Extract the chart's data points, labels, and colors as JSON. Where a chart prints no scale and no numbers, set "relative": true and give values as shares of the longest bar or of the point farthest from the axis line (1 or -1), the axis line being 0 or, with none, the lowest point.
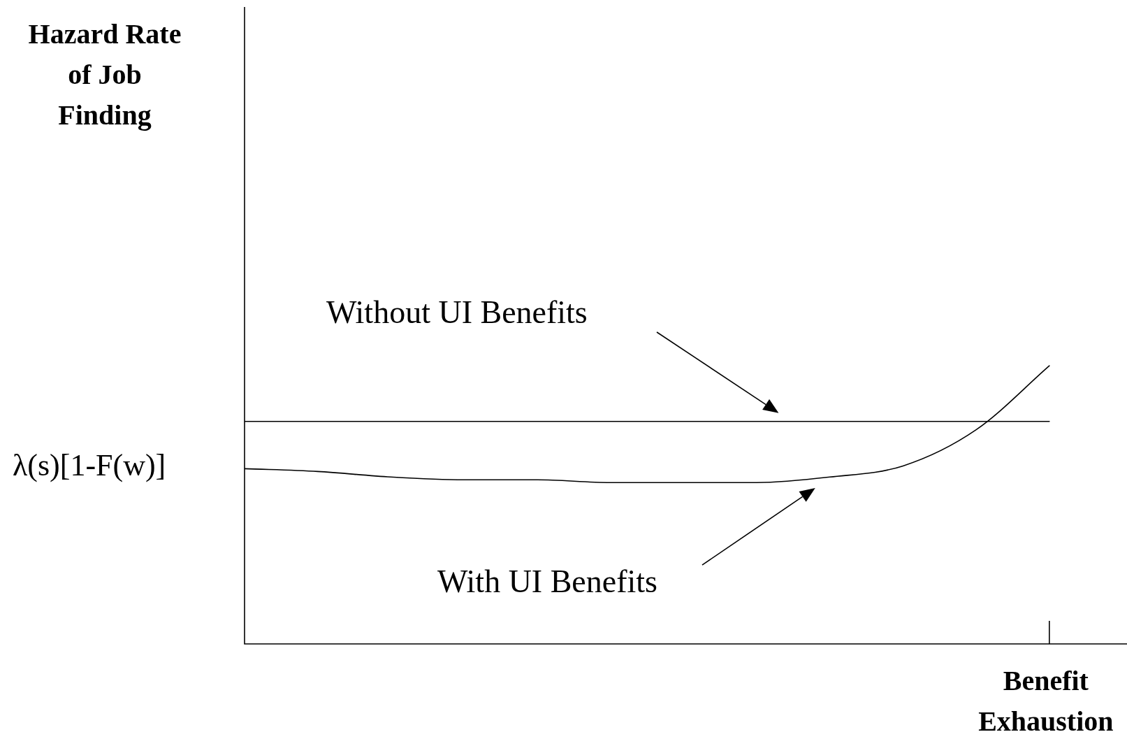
{
  "chart_data": {
    "type": "line",
    "relative": true,
    "xlabel": "Benefit Exhaustion",
    "categories": [
      null,
      null,
      null,
      null,
      null,
      null,
      null,
      null,
      null,
      null,
      null,
      null
    ],
    "series": [
      {
        "name": "Without UI Benefits",
        "color": "#000000",
        "values": [
          0.8,
          0.8,
          0.8,
          0.8,
          0.8,
          0.8,
          0.8,
          0.8,
          0.8,
          0.8,
          0.8,
          0.8
        ]
      },
      {
        "name": "With UI Benefits",
        "color": "#000000",
        "values": [
          0.63,
          0.62,
          0.6,
          0.59,
          0.59,
          0.58,
          0.58,
          0.58,
          0.6,
          0.64,
          0.77,
          1
        ]
      }
    ],
    "annotations": [
      "Hazard Rate of Job Finding",
      "λ(s)[1-F(w)]"
    ],
    "marker": "none",
    "legend": false
  }
}
